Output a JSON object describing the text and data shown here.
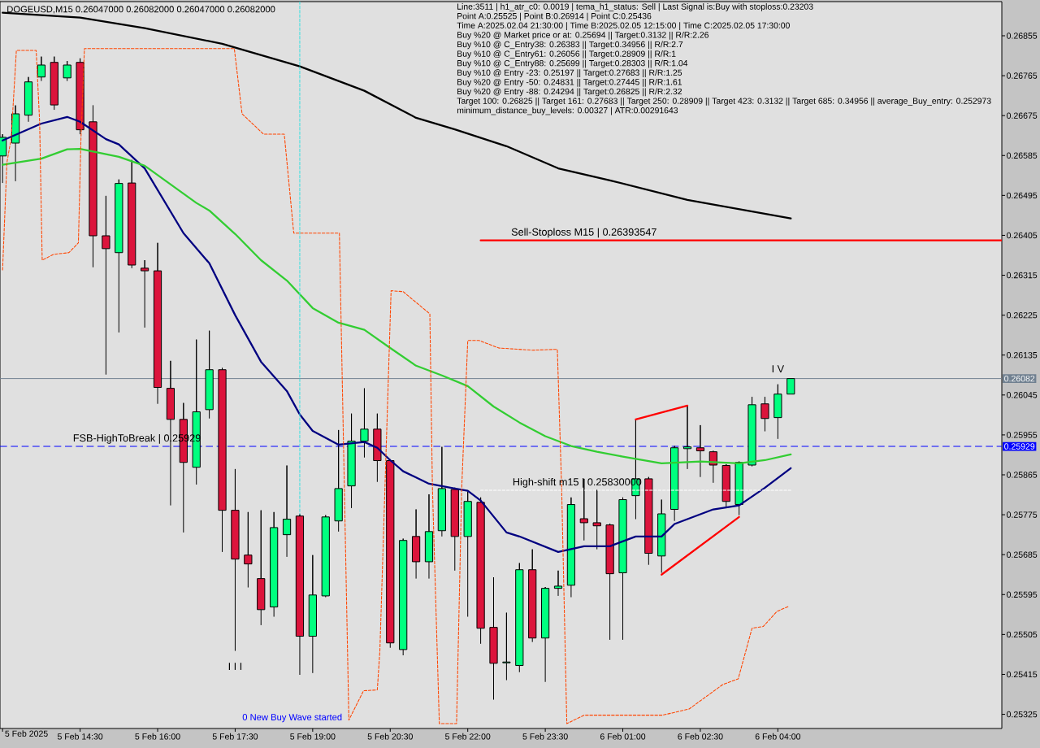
{
  "chart_data": {
    "type": "candlestick",
    "title": "DOGEUSD,M15 0.26047000 0.26082000 0.26047000 0.26082000",
    "xlabel": "5 Feb 2025",
    "x": [
      "2025-02-05T13:00",
      "2025-02-05T13:15",
      "2025-02-05T13:30",
      "2025-02-05T13:45",
      "2025-02-05T14:00",
      "2025-02-05T14:15",
      "2025-02-05T14:30",
      "2025-02-05T14:45",
      "2025-02-05T15:00",
      "2025-02-05T15:15",
      "2025-02-05T15:30",
      "2025-02-05T15:45",
      "2025-02-05T16:00",
      "2025-02-05T16:15",
      "2025-02-05T16:30",
      "2025-02-05T16:45",
      "2025-02-05T17:00",
      "2025-02-05T17:15",
      "2025-02-05T17:30",
      "2025-02-05T17:45",
      "2025-02-05T18:00",
      "2025-02-05T18:15",
      "2025-02-05T18:30",
      "2025-02-05T18:45",
      "2025-02-05T19:00",
      "2025-02-05T19:15",
      "2025-02-05T19:30",
      "2025-02-05T19:45",
      "2025-02-05T20:00",
      "2025-02-05T20:15",
      "2025-02-05T20:30",
      "2025-02-05T20:45",
      "2025-02-05T21:00",
      "2025-02-05T21:15",
      "2025-02-05T21:30",
      "2025-02-05T21:45",
      "2025-02-05T22:00",
      "2025-02-05T22:15",
      "2025-02-05T22:30",
      "2025-02-05T22:45",
      "2025-02-05T23:00",
      "2025-02-05T23:15",
      "2025-02-05T23:30",
      "2025-02-05T23:45",
      "2025-02-06T00:00",
      "2025-02-06T00:15",
      "2025-02-06T00:30",
      "2025-02-06T00:45",
      "2025-02-06T01:00",
      "2025-02-06T01:15",
      "2025-02-06T01:30",
      "2025-02-06T01:45",
      "2025-02-06T02:00",
      "2025-02-06T02:15",
      "2025-02-06T02:30",
      "2025-02-06T02:45",
      "2025-02-06T03:00",
      "2025-02-06T03:15",
      "2025-02-06T03:30",
      "2025-02-06T03:45",
      "2025-02-06T04:00",
      "2025-02-06T04:15"
    ],
    "ohlc": [
      [
        0.26584,
        0.26633,
        0.26523,
        0.26626
      ],
      [
        0.26613,
        0.26698,
        0.26527,
        0.26679
      ],
      [
        0.26676,
        0.26762,
        0.26661,
        0.26751
      ],
      [
        0.26762,
        0.26808,
        0.26753,
        0.26789
      ],
      [
        0.26795,
        0.26808,
        0.26688,
        0.26699
      ],
      [
        0.2676,
        0.26798,
        0.26753,
        0.26789
      ],
      [
        0.26795,
        0.26804,
        0.26633,
        0.26643
      ],
      [
        0.26661,
        0.26698,
        0.26333,
        0.26404
      ],
      [
        0.26404,
        0.26494,
        0.26091,
        0.26375
      ],
      [
        0.26366,
        0.26531,
        0.26186,
        0.26522
      ],
      [
        0.26523,
        0.26575,
        0.26331,
        0.26338
      ],
      [
        0.26331,
        0.26349,
        0.26197,
        0.26325
      ],
      [
        0.26325,
        0.26388,
        0.26025,
        0.26062
      ],
      [
        0.2606,
        0.26122,
        0.25796,
        0.2599
      ],
      [
        0.2599,
        0.26027,
        0.25735,
        0.25893
      ],
      [
        0.25882,
        0.2617,
        0.25843,
        0.26007
      ],
      [
        0.26012,
        0.2619,
        0.25992,
        0.26102
      ],
      [
        0.26102,
        0.26106,
        0.25691,
        0.25785
      ],
      [
        0.25785,
        0.25878,
        0.25468,
        0.25675
      ],
      [
        0.25684,
        0.25781,
        0.25611,
        0.25664
      ],
      [
        0.25631,
        0.25785,
        0.25526,
        0.25561
      ],
      [
        0.25567,
        0.25781,
        0.25545,
        0.25746
      ],
      [
        0.2573,
        0.25886,
        0.2568,
        0.25765
      ],
      [
        0.25772,
        0.25776,
        0.25414,
        0.25501
      ],
      [
        0.25501,
        0.25684,
        0.25418,
        0.25594
      ],
      [
        0.25592,
        0.25774,
        0.25589,
        0.2577
      ],
      [
        0.25761,
        0.25966,
        0.25737,
        0.25834
      ],
      [
        0.2584,
        0.26003,
        0.2579,
        0.25941
      ],
      [
        0.25941,
        0.2606,
        0.25904,
        0.25968
      ],
      [
        0.25968,
        0.26003,
        0.25849,
        0.25897
      ],
      [
        0.25897,
        0.259,
        0.25475,
        0.25486
      ],
      [
        0.25471,
        0.25721,
        0.25458,
        0.25717
      ],
      [
        0.25726,
        0.25787,
        0.25631,
        0.25669
      ],
      [
        0.25669,
        0.25821,
        0.25631,
        0.25737
      ],
      [
        0.25739,
        0.25928,
        0.25726,
        0.25834
      ],
      [
        0.25832,
        0.25836,
        0.25649,
        0.25726
      ],
      [
        0.25726,
        0.25827,
        0.25545,
        0.25805
      ],
      [
        0.25803,
        0.25814,
        0.25484,
        0.25519
      ],
      [
        0.25521,
        0.25634,
        0.25358,
        0.2544
      ],
      [
        0.25442,
        0.25554,
        0.25402,
        0.25442
      ],
      [
        0.25435,
        0.25666,
        0.2542,
        0.25651
      ],
      [
        0.25651,
        0.25697,
        0.25488,
        0.25497
      ],
      [
        0.25497,
        0.25612,
        0.25398,
        0.25609
      ],
      [
        0.25609,
        0.25649,
        0.25592,
        0.25614
      ],
      [
        0.25616,
        0.25814,
        0.25589,
        0.25798
      ],
      [
        0.25766,
        0.25856,
        0.25717,
        0.25757
      ],
      [
        0.25757,
        0.25831,
        0.25697,
        0.2575
      ],
      [
        0.25752,
        0.25755,
        0.25493,
        0.25642
      ],
      [
        0.25644,
        0.25814,
        0.25493,
        0.25809
      ],
      [
        0.25818,
        0.2599,
        0.25765,
        0.25856
      ],
      [
        0.25856,
        0.2586,
        0.25662,
        0.25688
      ],
      [
        0.25682,
        0.25809,
        0.25644,
        0.25777
      ],
      [
        0.25787,
        0.2593,
        0.25761,
        0.25926
      ],
      [
        0.25924,
        0.26021,
        0.25878,
        0.25928
      ],
      [
        0.25926,
        0.25977,
        0.2586,
        0.25919
      ],
      [
        0.25917,
        0.25919,
        0.25847,
        0.25887
      ],
      [
        0.25886,
        0.25889,
        0.25792,
        0.25805
      ],
      [
        0.25798,
        0.25895,
        0.25774,
        0.25893
      ],
      [
        0.25887,
        0.26041,
        0.25884,
        0.26023
      ],
      [
        0.26025,
        0.26041,
        0.25963,
        0.25992
      ],
      [
        0.25994,
        0.26069,
        0.25946,
        0.26047
      ],
      [
        0.26047,
        0.26082,
        0.26047,
        0.26082
      ]
    ],
    "colors": [
      "#00ff7f",
      "#00ff7f",
      "#00ff7f",
      "#00ff7f",
      "#dc143c",
      "#00ff7f",
      "#dc143c",
      "#dc143c",
      "#dc143c",
      "#00ff7f",
      "#dc143c",
      "#dc143c",
      "#dc143c",
      "#dc143c",
      "#dc143c",
      "#00ff7f",
      "#00ff7f",
      "#dc143c",
      "#dc143c",
      "#dc143c",
      "#dc143c",
      "#00ff7f",
      "#00ff7f",
      "#dc143c",
      "#00ff7f",
      "#00ff7f",
      "#00ff7f",
      "#00ff7f",
      "#00ff7f",
      "#dc143c",
      "#dc143c",
      "#00ff7f",
      "#dc143c",
      "#00ff7f",
      "#00ff7f",
      "#dc143c",
      "#00ff7f",
      "#dc143c",
      "#dc143c",
      "#00ff7f",
      "#00ff7f",
      "#dc143c",
      "#00ff7f",
      "#00ff7f",
      "#00ff7f",
      "#dc143c",
      "#dc143c",
      "#dc143c",
      "#00ff7f",
      "#00ff7f",
      "#dc143c",
      "#00ff7f",
      "#00ff7f",
      "#00ff7f",
      "#dc143c",
      "#dc143c",
      "#dc143c",
      "#00ff7f",
      "#00ff7f",
      "#dc143c",
      "#00ff7f",
      "#00ff7f"
    ],
    "series": [
      {
        "type": "line",
        "color": "#000000",
        "x": [
          "2025-02-05T13:00",
          "2025-02-05T14:30",
          "2025-02-05T15:45",
          "2025-02-05T17:15",
          "2025-02-05T18:45",
          "2025-02-05T20:00",
          "2025-02-05T21:00",
          "2025-02-05T21:45",
          "2025-02-05T22:45",
          "2025-02-05T23:45",
          "2025-02-06T00:45",
          "2025-02-06T02:15",
          "2025-02-06T04:15"
        ],
        "values": [
          0.26907,
          0.26896,
          0.26872,
          0.26837,
          0.26786,
          0.26731,
          0.2667,
          0.26644,
          0.26606,
          0.26556,
          0.26529,
          0.26485,
          0.26443
        ]
      },
      {
        "type": "line",
        "color": "#000080",
        "x": [
          "2025-02-05T13:00",
          "2025-02-05T13:45",
          "2025-02-05T14:15",
          "2025-02-05T14:30",
          "2025-02-05T15:00",
          "2025-02-05T15:15",
          "2025-02-05T15:45",
          "2025-02-05T16:30",
          "2025-02-05T17:00",
          "2025-02-05T17:30",
          "2025-02-05T18:00",
          "2025-02-05T18:30",
          "2025-02-05T18:45",
          "2025-02-05T19:00",
          "2025-02-05T19:30",
          "2025-02-05T20:00",
          "2025-02-05T20:15",
          "2025-02-05T20:30",
          "2025-02-05T20:45",
          "2025-02-05T21:15",
          "2025-02-05T21:45",
          "2025-02-05T22:00",
          "2025-02-05T22:15",
          "2025-02-05T22:45",
          "2025-02-05T23:00",
          "2025-02-05T23:45",
          "2025-02-06T00:15",
          "2025-02-06T00:45",
          "2025-02-06T01:15",
          "2025-02-06T01:45",
          "2025-02-06T02:00",
          "2025-02-06T02:45",
          "2025-02-06T03:15",
          "2025-02-06T03:45",
          "2025-02-06T04:15"
        ],
        "values": [
          0.26619,
          0.26657,
          0.26672,
          0.26661,
          0.26622,
          0.2661,
          0.26556,
          0.2641,
          0.26342,
          0.26225,
          0.2612,
          0.26054,
          0.26001,
          0.25964,
          0.25933,
          0.25939,
          0.25926,
          0.25898,
          0.25873,
          0.25845,
          0.25834,
          0.25829,
          0.25807,
          0.25735,
          0.25726,
          0.25691,
          0.25704,
          0.25704,
          0.25726,
          0.25726,
          0.25754,
          0.25787,
          0.25796,
          0.25836,
          0.2588
        ]
      },
      {
        "type": "line",
        "color": "#32cd32",
        "x": [
          "2025-02-05T13:00",
          "2025-02-05T13:45",
          "2025-02-05T14:15",
          "2025-02-05T14:30",
          "2025-02-05T15:15",
          "2025-02-05T15:45",
          "2025-02-05T16:45",
          "2025-02-05T17:00",
          "2025-02-05T17:30",
          "2025-02-05T18:00",
          "2025-02-05T18:30",
          "2025-02-05T19:00",
          "2025-02-05T19:30",
          "2025-02-05T20:00",
          "2025-02-05T20:30",
          "2025-02-05T21:00",
          "2025-02-05T21:30",
          "2025-02-05T22:00",
          "2025-02-05T22:30",
          "2025-02-05T23:00",
          "2025-02-05T23:30",
          "2025-02-06T00:00",
          "2025-02-06T00:30",
          "2025-02-06T01:00",
          "2025-02-06T01:45",
          "2025-02-06T02:30",
          "2025-02-06T03:15",
          "2025-02-06T03:45",
          "2025-02-06T04:15"
        ],
        "values": [
          0.26564,
          0.26578,
          0.26599,
          0.266,
          0.26582,
          0.26562,
          0.26478,
          0.26461,
          0.26408,
          0.26349,
          0.26303,
          0.26241,
          0.26208,
          0.26192,
          0.26151,
          0.26111,
          0.26089,
          0.26065,
          0.26019,
          0.25983,
          0.25952,
          0.2593,
          0.25917,
          0.25906,
          0.25891,
          0.25895,
          0.25891,
          0.25898,
          0.25911
        ]
      },
      {
        "type": "line",
        "color": "#ff4500",
        "line_style": "dashed",
        "x": [
          "2025-02-05T13:00",
          "2025-02-05T13:05",
          "2025-02-05T13:10",
          "2025-02-05T13:16",
          "2025-02-05T13:39",
          "2025-02-05T13:43",
          "2025-02-05T13:46",
          "2025-02-05T13:59",
          "2025-02-05T14:17",
          "2025-02-05T14:28",
          "2025-02-05T14:31",
          "2025-02-05T14:35",
          "2025-02-05T17:29",
          "2025-02-05T17:38",
          "2025-02-05T18:03",
          "2025-02-05T18:27",
          "2025-02-05T18:38",
          "2025-02-05T18:47",
          "2025-02-05T19:31",
          "2025-02-05T19:42",
          "2025-02-05T19:59",
          "2025-02-05T20:15",
          "2025-02-05T20:18",
          "2025-02-05T20:31",
          "2025-02-05T20:45",
          "2025-02-05T21:16",
          "2025-02-05T21:19",
          "2025-02-05T21:27",
          "2025-02-05T21:47",
          "2025-02-05T21:53",
          "2025-02-05T22:00",
          "2025-02-05T22:13",
          "2025-02-05T22:36",
          "2025-02-05T23:15",
          "2025-02-05T23:44",
          "2025-02-05T23:49",
          "2025-02-05T23:55",
          "2025-02-06T00:15",
          "2025-02-06T01:46",
          "2025-02-06T02:17",
          "2025-02-06T02:56",
          "2025-02-06T03:14",
          "2025-02-06T03:30",
          "2025-02-06T03:43",
          "2025-02-06T03:59",
          "2025-02-06T04:12"
        ],
        "values": [
          0.26327,
          0.26569,
          0.26624,
          0.26822,
          0.26822,
          0.26661,
          0.26349,
          0.26362,
          0.26366,
          0.26388,
          0.26624,
          0.26826,
          0.26826,
          0.26679,
          0.26633,
          0.26633,
          0.2641,
          0.2641,
          0.2641,
          0.25312,
          0.25378,
          0.2538,
          0.25469,
          0.2628,
          0.26278,
          0.26228,
          0.25836,
          0.25304,
          0.25304,
          0.25836,
          0.26168,
          0.26168,
          0.26151,
          0.26146,
          0.26148,
          0.25836,
          0.25304,
          0.25323,
          0.25323,
          0.25337,
          0.25392,
          0.25405,
          0.25519,
          0.25523,
          0.25557,
          0.25568
        ]
      },
      {
        "type": "line",
        "color": "#40e0e0",
        "line_style": "dashed",
        "x": [
          "2025-02-05T18:45",
          "2025-02-05T18:45"
        ],
        "values": [
          0.26932,
          0.25776
        ]
      },
      {
        "type": "line",
        "color": "#ff0000",
        "x": [
          "2025-02-06T01:15",
          "2025-02-06T02:15"
        ],
        "values": [
          0.2599,
          0.26021
        ]
      },
      {
        "type": "line",
        "color": "#ff0000",
        "x": [
          "2025-02-06T01:45",
          "2025-02-06T03:15"
        ],
        "values": [
          0.2564,
          0.2577
        ]
      },
      {
        "type": "line",
        "color": "#ff0000",
        "x": [
          "2025-02-05T22:15",
          "2025-02-06T08:20"
        ],
        "values": [
          0.26393547,
          0.26393547
        ]
      },
      {
        "type": "line",
        "color": "#ffffff",
        "line_style": "dashed",
        "x": [
          "2025-02-05T22:15",
          "2025-02-06T04:15"
        ],
        "values": [
          0.2583,
          0.2583
        ]
      }
    ],
    "ref_lines": [
      {
        "axis": "y",
        "value": 0.26082,
        "label": "0.26082",
        "color": "#708090",
        "line_style": "solid"
      },
      {
        "axis": "y",
        "value": 0.25929,
        "label": "0.25929",
        "color": "#0000ff",
        "line_style": "dashed"
      }
    ],
    "annotations": [
      "Line:3511 | h1_atr_c0: 0.0019 | tema_h1_status: Sell | Last Signal is:Buy with stoploss:0.23203",
      "Point A:0.25525 | Point B:0.26914 | Point C:0.25436",
      "Time A:2025.02.04 21:30:00 | Time B:2025.02.05 12:15:00 | Time C:2025.02.05 17:30:00",
      "Buy %20 @ Market price or at: 0.25694 || Target:0.3132 || R/R:2.26",
      "Buy %10 @ C_Entry38: 0.26383 || Target:0.34956 || R/R:2.7",
      "Buy %10 @ C_Entry61: 0.26056 || Target:0.28909 || R/R:1",
      "Buy %10 @ C_Entry88: 0.25699 || Target:0.28303 || R/R:1.04",
      "Buy %10 @ Entry -23: 0.25197 || Target:0.27683 || R/R:1.25",
      "Buy %20 @ Entry -50: 0.24831 || Target:0.27445 || R/R:1.61",
      "Buy %20 @ Entry -88: 0.24294 || Target:0.26825 || R/R:2.32",
      "Target 100: 0.26825 || Target 161: 0.27683 || Target 250: 0.28909 || Target 423: 0.3132 || Target 685: 0.34956 || average_Buy_entry: 0.252973",
      "minimum_distance_buy_levels: 0.00327 | ATR:0.00291643",
      {
        "text": "FSB-HighToBreak | 0.25929",
        "x": "2025-02-05T15:36",
        "y": 0.25929
      },
      {
        "text": "Sell-Stoploss M15 | 0.26393547",
        "x": "2025-02-06T00:15",
        "y": 0.26393547
      },
      {
        "text": "High-shift m15 | 0.25830000",
        "x": "2025-02-06T00:07",
        "y": 0.2583
      },
      {
        "text": "I V",
        "x": "2025-02-06T04:00",
        "y": 0.26069
      },
      {
        "text": "I I I",
        "x": "2025-02-05T17:30",
        "y": 0.25468
      },
      "0 New Buy Wave started"
    ],
    "xlim": [
      "2025-02-05T12:57",
      "2025-02-06T08:20"
    ],
    "ylim": [
      0.25293,
      0.26932
    ],
    "xticks": [
      {
        "value": "2025-02-05T13:00",
        "label": null
      },
      {
        "value": "2025-02-05T14:30",
        "label": "5 Feb 14:30"
      },
      {
        "value": "2025-02-05T16:00",
        "label": "5 Feb 16:00"
      },
      {
        "value": "2025-02-05T17:30",
        "label": "5 Feb 17:30"
      },
      {
        "value": "2025-02-05T19:00",
        "label": "5 Feb 19:00"
      },
      {
        "value": "2025-02-05T20:30",
        "label": "5 Feb 20:30"
      },
      {
        "value": "2025-02-05T22:00",
        "label": "5 Feb 22:00"
      },
      {
        "value": "2025-02-05T23:30",
        "label": "5 Feb 23:30"
      },
      {
        "value": "2025-02-06T01:00",
        "label": "6 Feb 01:00"
      },
      {
        "value": "2025-02-06T02:30",
        "label": "6 Feb 02:30"
      },
      {
        "value": "2025-02-06T04:00",
        "label": "6 Feb 04:00"
      }
    ],
    "yticks": [
      0.25325,
      0.25415,
      0.25505,
      0.25595,
      0.25685,
      0.25775,
      0.25865,
      0.25955,
      0.26045,
      0.26135,
      0.26225,
      0.26315,
      0.26405,
      0.26495,
      0.26585,
      0.26675,
      0.26765,
      0.26855
    ]
  }
}
